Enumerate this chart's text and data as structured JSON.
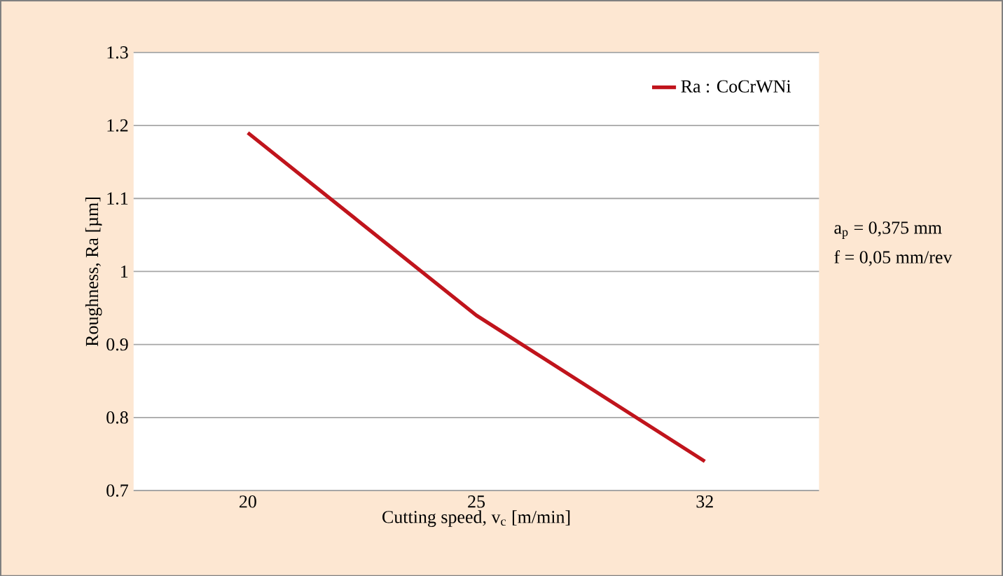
{
  "chart_data": {
    "type": "line",
    "categories": [
      "20",
      "25",
      "32"
    ],
    "series": [
      {
        "name": "Ra : CoCrWNi",
        "color": "#c0141c",
        "values": [
          1.19,
          0.94,
          0.74
        ]
      }
    ],
    "ylim": [
      0.7,
      1.3
    ],
    "yticks": [
      0.7,
      0.8,
      0.9,
      1,
      1.1,
      1.2,
      1.3
    ],
    "xlabel": "Cutting speed, v$_{c}$ [m/min]",
    "ylabel": "Roughness, Ra  [µm]",
    "annotations": [
      "a$_{p}$ = 0,375 mm",
      "f = 0,05 mm/rev"
    ],
    "grid": "y",
    "legend": "top right",
    "marker": "none",
    "line_style": "solid"
  }
}
